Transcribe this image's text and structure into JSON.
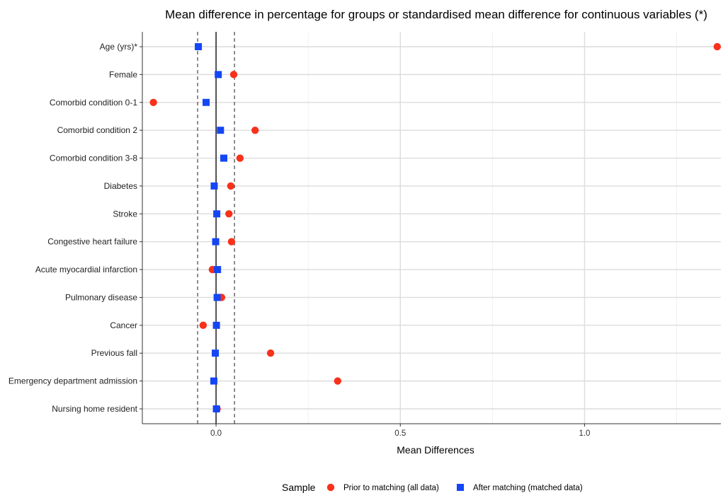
{
  "chart_data": {
    "type": "scatter",
    "title": "Mean difference in percentage for groups or standardised mean difference for continuous variables (*)",
    "xlabel": "Mean Differences",
    "ylabel": "",
    "xlim": [
      -0.2,
      1.37
    ],
    "x_ticks": [
      0.0,
      0.5,
      1.0
    ],
    "x_tick_labels": [
      "0.0",
      "0.5",
      "1.0"
    ],
    "reference_lines": {
      "solid": 0.0,
      "dashed": [
        -0.05,
        0.05
      ]
    },
    "grid": true,
    "legend_position": "bottom",
    "legend_title": "Sample",
    "categories": [
      "Age (yrs)*",
      "Female",
      "Comorbid condition 0-1",
      "Comorbid condition 2",
      "Comorbid condition 3-8",
      "Diabetes",
      "Stroke",
      "Congestive heart failure",
      "Acute myocardial infarction",
      "Pulmonary disease",
      "Cancer",
      "Previous fall",
      "Emergency department admission",
      "Nursing home resident"
    ],
    "series": [
      {
        "name": "Prior to matching (all data)",
        "marker": "circle",
        "color": "#f8311b",
        "values": [
          1.36,
          0.048,
          -0.17,
          0.106,
          0.065,
          0.04,
          0.035,
          0.042,
          -0.01,
          0.015,
          -0.035,
          0.148,
          0.33,
          0.003
        ]
      },
      {
        "name": "After matching (matched data)",
        "marker": "square",
        "color": "#1446f5",
        "values": [
          -0.048,
          0.006,
          -0.027,
          0.012,
          0.021,
          -0.005,
          0.002,
          -0.001,
          0.004,
          0.003,
          0.001,
          -0.002,
          -0.006,
          0.001
        ]
      }
    ]
  }
}
